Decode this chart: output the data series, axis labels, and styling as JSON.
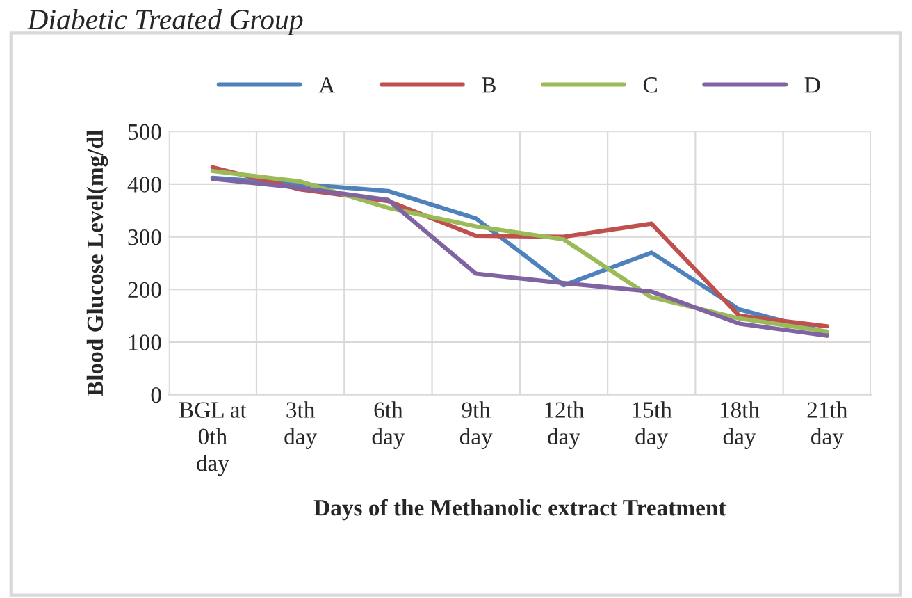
{
  "chart_data": {
    "type": "line",
    "title": "Diabetic Treated Group",
    "xlabel": "Days of the Methanolic extract Treatment",
    "ylabel": "Blood Glucose Level(mg/dl",
    "categories": [
      "BGL at\n0th\nday",
      "3th\nday",
      "6th\nday",
      "9th\nday",
      "12th\nday",
      "15th\nday",
      "18th\nday",
      "21th\nday"
    ],
    "series": [
      {
        "name": "A",
        "color": "#4f81bd",
        "values": [
          412,
          400,
          387,
          335,
          208,
          270,
          162,
          118
        ]
      },
      {
        "name": "B",
        "color": "#c0504d",
        "values": [
          432,
          390,
          368,
          302,
          300,
          325,
          150,
          130
        ]
      },
      {
        "name": "C",
        "color": "#9bbb59",
        "values": [
          425,
          405,
          355,
          320,
          295,
          185,
          145,
          120
        ]
      },
      {
        "name": "D",
        "color": "#8064a2",
        "values": [
          410,
          393,
          370,
          230,
          212,
          196,
          135,
          112
        ]
      }
    ],
    "ylim": [
      0,
      500
    ],
    "yticks": [
      0,
      100,
      200,
      300,
      400,
      500
    ],
    "grid": true,
    "legend": "top",
    "marker": "none",
    "line_style": "solid"
  }
}
